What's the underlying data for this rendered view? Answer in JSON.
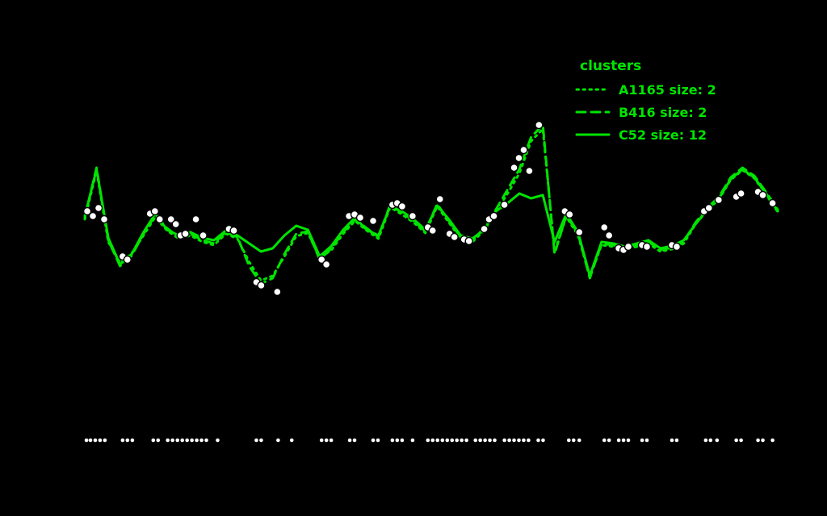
{
  "canvas": {
    "background": "#000000"
  },
  "legend": {
    "title": "clusters",
    "color": "#00e400",
    "entries": [
      {
        "label": "A1165 size: 2",
        "style": "dotted"
      },
      {
        "label": "B416 size: 2",
        "style": "dashed"
      },
      {
        "label": "C52 size: 12",
        "style": "solid"
      }
    ]
  },
  "chart_data": {
    "type": "line",
    "title": "",
    "xlabel": "",
    "ylabel": "",
    "x_range": [
      0,
      59
    ],
    "ylim": [
      0,
      500
    ],
    "grid": false,
    "legend_position": "top-right",
    "colors": {
      "line": "#00e400",
      "marker_fill": "#ffffff",
      "marker_stroke": "#000000",
      "rug": "#ffffff"
    },
    "series": [
      {
        "name": "A1165 size: 2",
        "style": "dotted",
        "values": [
          288,
          348,
          260,
          234,
          246,
          268,
          291,
          274,
          264,
          268,
          260,
          256,
          270,
          264,
          235,
          212,
          218,
          242,
          267,
          271,
          240,
          250,
          270,
          286,
          274,
          264,
          303,
          294,
          284,
          271,
          304,
          284,
          264,
          260,
          274,
          297,
          320,
          345,
          385,
          400,
          248,
          291,
          268,
          217,
          256,
          254,
          250,
          254,
          258,
          248,
          251,
          258,
          282,
          299,
          313,
          337,
          349,
          339,
          319,
          297
        ]
      },
      {
        "name": "B416 size: 2",
        "style": "dashed",
        "values": [
          290,
          352,
          262,
          230,
          243,
          270,
          293,
          277,
          266,
          270,
          262,
          258,
          272,
          266,
          230,
          208,
          215,
          245,
          270,
          273,
          238,
          252,
          272,
          288,
          277,
          266,
          306,
          296,
          286,
          273,
          307,
          286,
          266,
          262,
          277,
          300,
          325,
          350,
          390,
          405,
          245,
          293,
          270,
          215,
          258,
          256,
          252,
          256,
          260,
          250,
          253,
          260,
          284,
          302,
          316,
          340,
          352,
          342,
          322,
          300
        ]
      },
      {
        "name": "C52 size: 12",
        "style": "solid",
        "values": [
          292,
          350,
          265,
          232,
          245,
          272,
          295,
          275,
          268,
          272,
          265,
          262,
          274,
          268,
          258,
          248,
          252,
          268,
          280,
          275,
          242,
          255,
          275,
          290,
          275,
          268,
          304,
          298,
          288,
          275,
          305,
          288,
          268,
          264,
          275,
          298,
          308,
          320,
          314,
          318,
          260,
          295,
          272,
          218,
          260,
          258,
          254,
          258,
          262,
          252,
          255,
          262,
          282,
          300,
          314,
          338,
          350,
          340,
          320,
          298
        ]
      }
    ],
    "markers": [
      [
        0.21,
        298
      ],
      [
        0.69,
        292
      ],
      [
        1.17,
        302
      ],
      [
        1.65,
        288
      ],
      [
        3.22,
        242
      ],
      [
        3.63,
        238
      ],
      [
        5.55,
        295
      ],
      [
        5.97,
        298
      ],
      [
        6.38,
        288
      ],
      [
        7.34,
        288
      ],
      [
        7.75,
        282
      ],
      [
        8.16,
        268
      ],
      [
        8.57,
        270
      ],
      [
        9.46,
        288
      ],
      [
        10.08,
        268
      ],
      [
        12.27,
        276
      ],
      [
        12.69,
        274
      ],
      [
        14.61,
        210
      ],
      [
        15.02,
        206
      ],
      [
        16.39,
        198
      ],
      [
        20.16,
        238
      ],
      [
        20.57,
        232
      ],
      [
        22.49,
        292
      ],
      [
        22.97,
        294
      ],
      [
        23.45,
        290
      ],
      [
        24.55,
        286
      ],
      [
        26.19,
        306
      ],
      [
        26.6,
        308
      ],
      [
        27.02,
        304
      ],
      [
        27.91,
        292
      ],
      [
        29.21,
        278
      ],
      [
        29.62,
        274
      ],
      [
        30.24,
        313
      ],
      [
        31.06,
        270
      ],
      [
        31.47,
        266
      ],
      [
        32.3,
        263
      ],
      [
        32.71,
        261
      ],
      [
        34.01,
        276
      ],
      [
        34.42,
        288
      ],
      [
        34.83,
        292
      ],
      [
        35.73,
        306
      ],
      [
        36.55,
        352
      ],
      [
        36.96,
        364
      ],
      [
        37.37,
        374
      ],
      [
        37.85,
        348
      ],
      [
        38.67,
        405
      ],
      [
        40.87,
        298
      ],
      [
        41.28,
        294
      ],
      [
        42.1,
        272
      ],
      [
        44.23,
        278
      ],
      [
        44.64,
        268
      ],
      [
        45.46,
        252
      ],
      [
        45.87,
        250
      ],
      [
        46.28,
        254
      ],
      [
        47.45,
        256
      ],
      [
        47.86,
        254
      ],
      [
        49.99,
        256
      ],
      [
        50.4,
        254
      ],
      [
        52.73,
        298
      ],
      [
        53.14,
        302
      ],
      [
        53.97,
        312
      ],
      [
        55.47,
        316
      ],
      [
        55.88,
        320
      ],
      [
        57.32,
        322
      ],
      [
        57.73,
        318
      ],
      [
        58.56,
        308
      ]
    ],
    "rug": {
      "y": 14,
      "x": [
        0.14,
        0.48,
        0.89,
        1.3,
        1.71,
        3.22,
        3.63,
        4.05,
        5.83,
        6.24,
        7.06,
        7.47,
        7.89,
        8.3,
        8.71,
        9.12,
        9.53,
        9.94,
        10.35,
        11.31,
        14.61,
        15.02,
        16.46,
        17.62,
        20.16,
        20.57,
        20.98,
        22.56,
        22.97,
        24.55,
        24.96,
        26.19,
        26.6,
        27.02,
        27.91,
        29.21,
        29.62,
        30.03,
        30.45,
        30.86,
        31.27,
        31.68,
        32.09,
        32.5,
        33.26,
        33.67,
        34.08,
        34.49,
        34.9,
        35.73,
        36.14,
        36.55,
        36.96,
        37.37,
        37.78,
        38.61,
        39.02,
        41.21,
        41.62,
        42.1,
        44.23,
        44.64,
        45.46,
        45.87,
        46.28,
        47.45,
        47.86,
        49.99,
        50.4,
        52.87,
        53.28,
        53.83,
        55.47,
        55.88,
        57.32,
        57.73,
        58.56
      ]
    }
  }
}
